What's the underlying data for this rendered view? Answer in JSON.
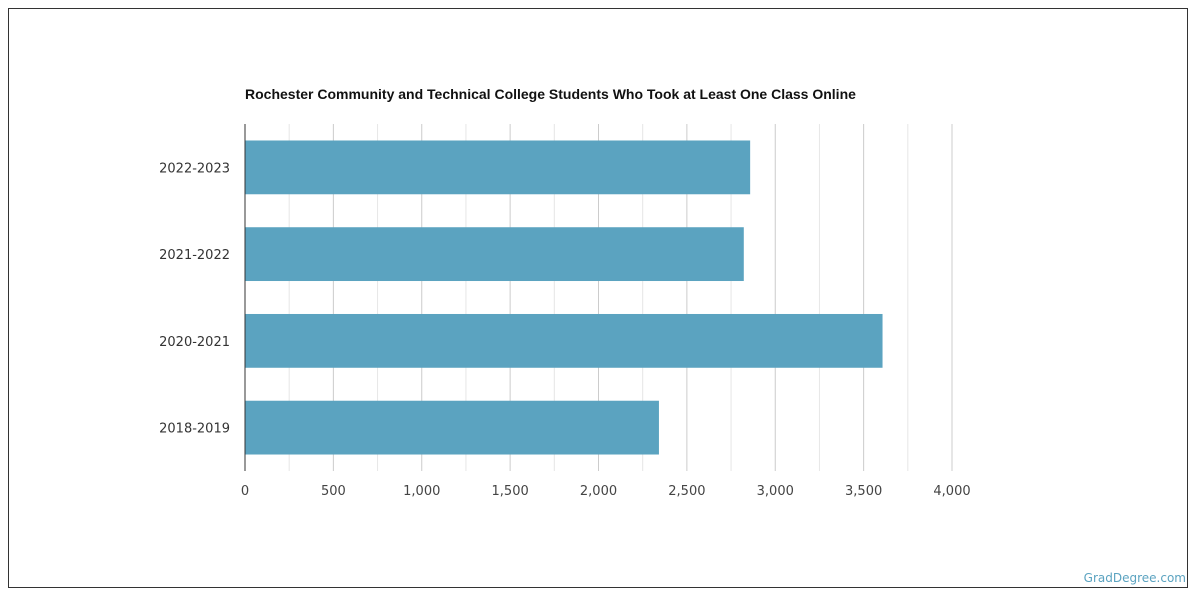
{
  "chart_data": {
    "type": "bar",
    "orientation": "horizontal",
    "title": "Rochester Community and Technical College Students Who Took at Least One Class Online",
    "categories": [
      "2022-2023",
      "2021-2022",
      "2020-2021",
      "2018-2019"
    ],
    "values": [
      2858,
      2822,
      3607,
      2342
    ],
    "xlim": [
      0,
      4000
    ],
    "xticks": [
      0,
      500,
      1000,
      1500,
      2000,
      2500,
      3000,
      3500,
      4000
    ],
    "xtick_labels": [
      "0",
      "500",
      "1,000",
      "1,500",
      "2,000",
      "2,500",
      "3,000",
      "3,500",
      "4,000"
    ],
    "grid": true,
    "bar_color": "#5ba3c0"
  },
  "watermark": "GradDegree.com"
}
